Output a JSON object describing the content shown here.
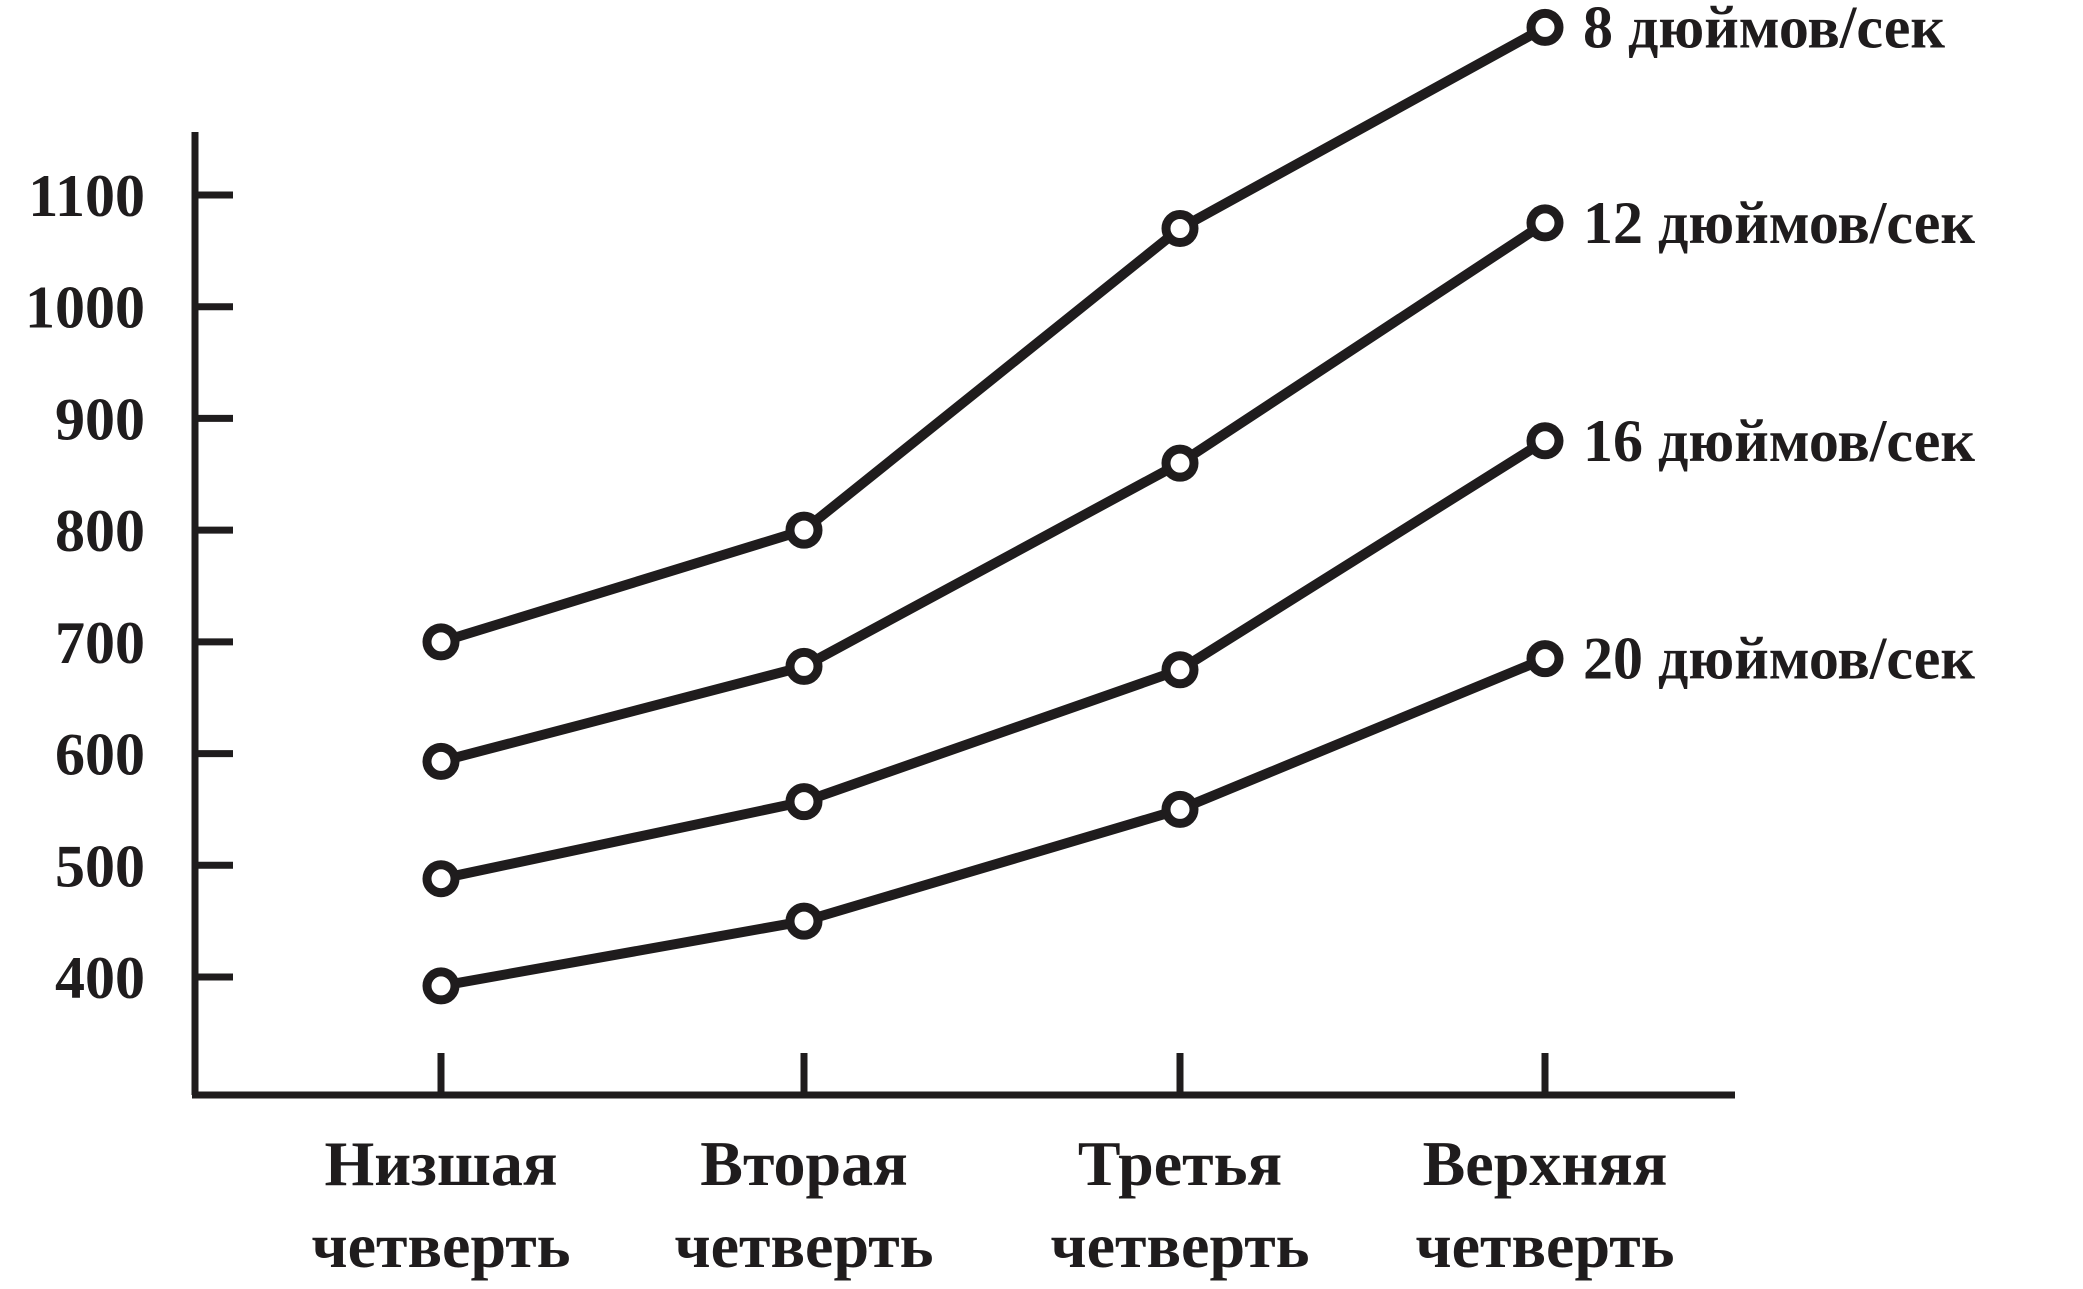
{
  "chart_data": {
    "type": "line",
    "title": "",
    "xlabel": "",
    "ylabel": "",
    "categories": [
      [
        "Низшая",
        "четверть"
      ],
      [
        "Вторая",
        "четверть"
      ],
      [
        "Третья",
        "четверть"
      ],
      [
        "Верхняя",
        "четверть"
      ]
    ],
    "yticks": [
      400,
      500,
      600,
      700,
      800,
      900,
      1000,
      1100
    ],
    "ylim": [
      300,
      1150
    ],
    "grid": false,
    "legend": "labels at line ends (right)",
    "series": [
      {
        "name": "8 дюймов/сек",
        "values": [
          700,
          800,
          1070,
          1250
        ]
      },
      {
        "name": "12 дюймов/сек",
        "values": [
          593,
          678,
          860,
          1075
        ]
      },
      {
        "name": "16 дюймов/сек",
        "values": [
          488,
          557,
          675,
          880
        ]
      },
      {
        "name": "20 дюймов/сек",
        "values": [
          392,
          450,
          550,
          685
        ]
      }
    ],
    "colors": {
      "ink": "#1f1c1d",
      "background": "#ffffff"
    }
  }
}
